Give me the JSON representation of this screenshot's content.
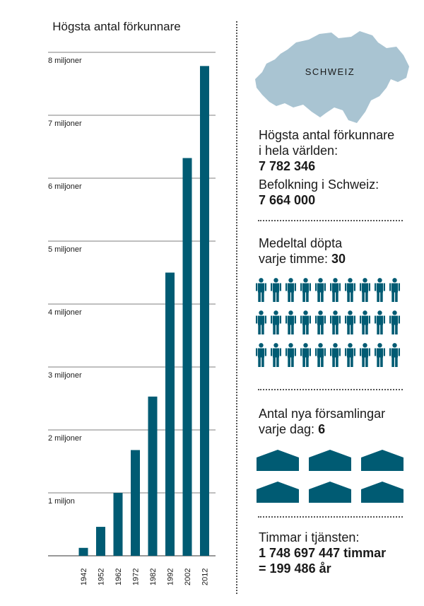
{
  "chart_data": {
    "type": "bar",
    "title": "Högsta antal förkunnare",
    "categories": [
      "1942",
      "1952",
      "1962",
      "1972",
      "1982",
      "1992",
      "2002",
      "2012"
    ],
    "values": [
      126000,
      460000,
      1000000,
      1680000,
      2530000,
      4500000,
      6320000,
      7782346
    ],
    "ylim": [
      0,
      8000000
    ],
    "yticks": [
      {
        "value": 1000000,
        "label": "1 miljon"
      },
      {
        "value": 2000000,
        "label": "2 miljoner"
      },
      {
        "value": 3000000,
        "label": "3 miljoner"
      },
      {
        "value": 4000000,
        "label": "4 miljoner"
      },
      {
        "value": 5000000,
        "label": "5 miljoner"
      },
      {
        "value": 6000000,
        "label": "6 miljoner"
      },
      {
        "value": 7000000,
        "label": "7 miljoner"
      },
      {
        "value": 8000000,
        "label": "8 miljoner"
      }
    ],
    "grid": true,
    "bar_color": "#005b73"
  },
  "map": {
    "label": "SCHWEIZ",
    "color": "#a9c4d2"
  },
  "stats": {
    "publishers": {
      "label_line1": "Högsta antal förkunnare",
      "label_line2": "i hela världen:",
      "value": "7 782 346"
    },
    "population": {
      "label": "Befolkning i Schweiz:",
      "value": "7 664 000"
    },
    "baptized": {
      "label_line1": "Medeltal döpta",
      "label_line2": "varje timme:",
      "value": "30",
      "icon": "person-icon",
      "count": 30
    },
    "congregations": {
      "label_line1": "Antal nya församlingar",
      "label_line2": "varje dag:",
      "value": "6",
      "icon": "kingdom-hall-icon",
      "count": 6
    },
    "hours": {
      "label": "Timmar i tjänsten:",
      "value_line1": "1 748 697 447 timmar",
      "value_line2": "= 199 486 år"
    }
  },
  "colors": {
    "accent": "#005b73",
    "map": "#a9c4d2"
  }
}
